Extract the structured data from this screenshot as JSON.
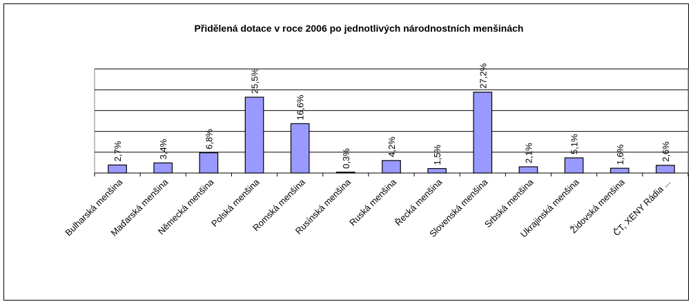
{
  "chart_data": {
    "type": "bar",
    "title": "Přidělená dotace v roce 2006 po jednotlivých národnostních menšinách",
    "categories": [
      "Bulharská menšina",
      "Maďarská menšina",
      "Německá menšina",
      "Polská menšina",
      "Romská menšina",
      "Rusínská menšina",
      "Ruská menšina",
      "Řecká menšina",
      "Slovenská menšina",
      "Srbská menšina",
      "Ukrajinská menšina",
      "Židovská menšina",
      "ČT, XENY Rádia ..."
    ],
    "values": [
      2.7,
      3.4,
      6.8,
      25.5,
      16.6,
      0.3,
      4.2,
      1.5,
      27.2,
      2.1,
      5.1,
      1.6,
      2.6
    ],
    "value_labels": [
      "2,7%",
      "3,4%",
      "6,8%",
      "25,5%",
      "16,6%",
      "0,3%",
      "4,2%",
      "1,5%",
      "27,2%",
      "2,1%",
      "5,1%",
      "1,6%",
      "2,6%"
    ],
    "color": "#9999ff",
    "ylim": [
      0,
      35
    ],
    "yticks": [
      0,
      7,
      14,
      21,
      28,
      35
    ],
    "grid": true
  }
}
